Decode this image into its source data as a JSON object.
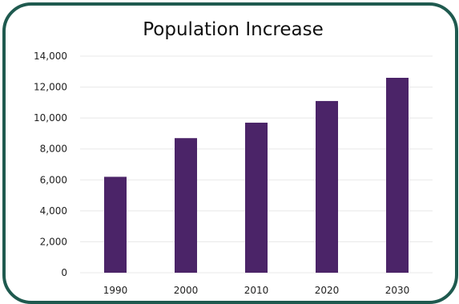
{
  "colors": {
    "frame": "#1f5a4f",
    "bar": "#4b2468",
    "grid": "#e8e8e8",
    "background": "#ffffff"
  },
  "chart_data": {
    "type": "bar",
    "title": "Population Increase",
    "xlabel": "",
    "ylabel": "",
    "categories": [
      "1990",
      "2000",
      "2010",
      "2020",
      "2030"
    ],
    "values": [
      6200,
      8700,
      9700,
      11100,
      12600
    ],
    "ylim": [
      0,
      14000
    ],
    "yticks": [
      0,
      2000,
      4000,
      6000,
      8000,
      10000,
      12000,
      14000
    ],
    "ytick_labels": [
      "0",
      "2,000",
      "4,000",
      "6,000",
      "8,000",
      "10,000",
      "12,000",
      "14,000"
    ],
    "grid": true,
    "legend": "none"
  }
}
